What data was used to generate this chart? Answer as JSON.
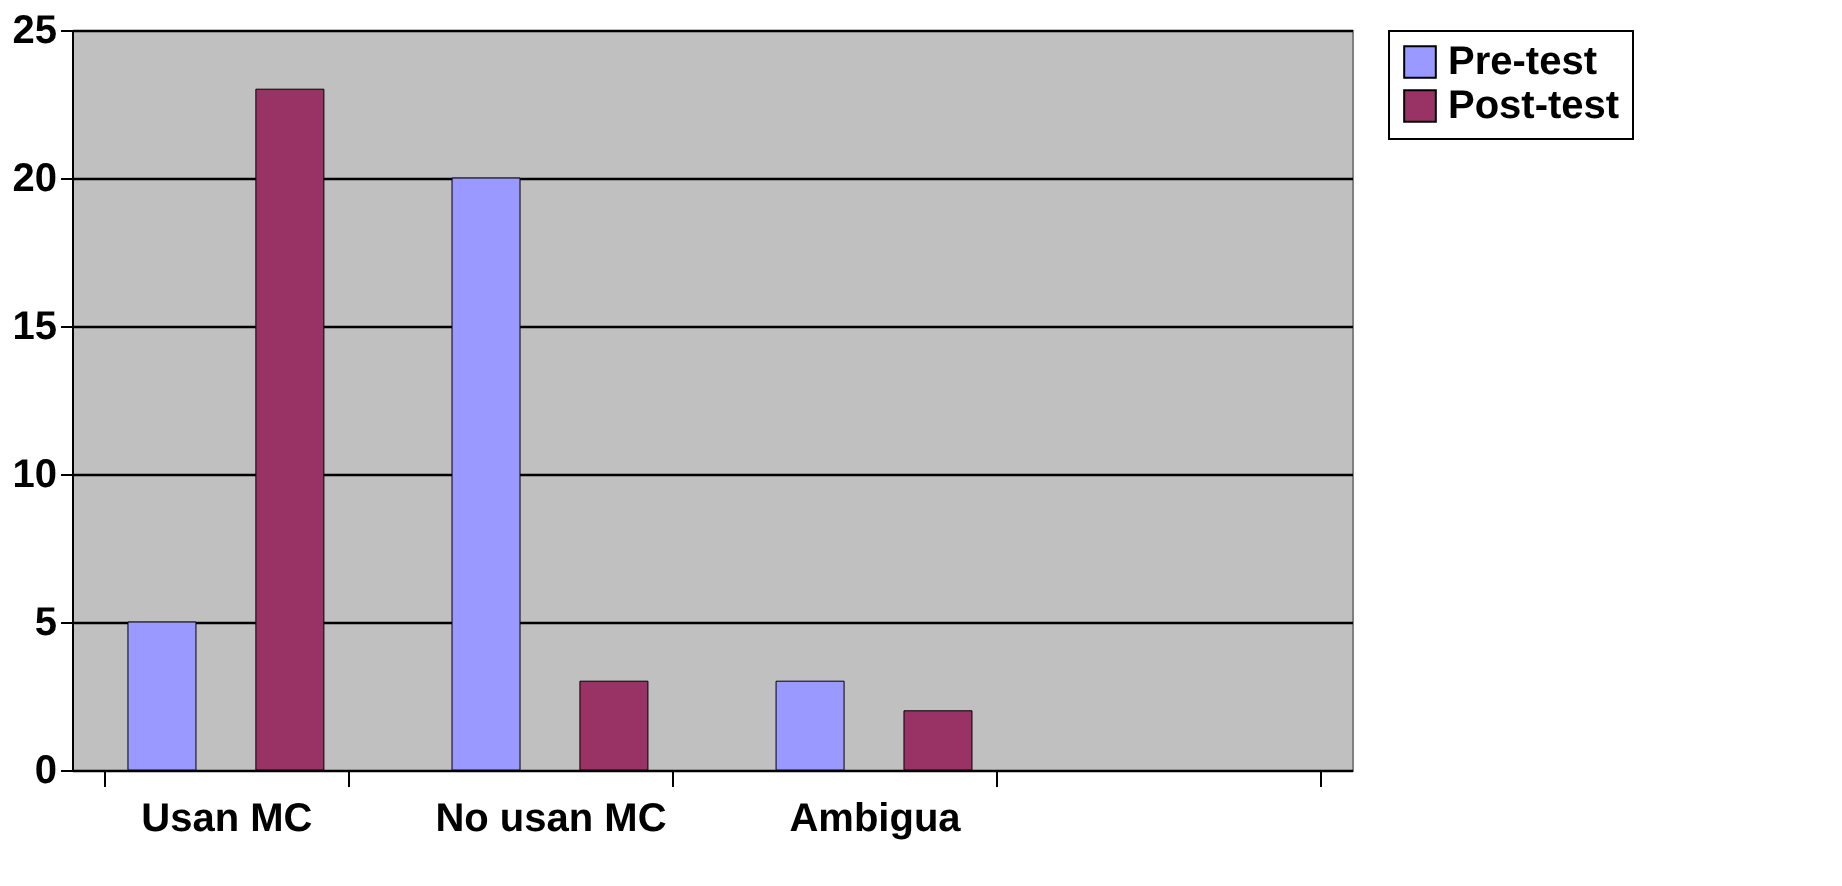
{
  "chart_data": {
    "type": "bar",
    "categories": [
      "Usan MC",
      "No usan MC",
      "Ambigua",
      null
    ],
    "series": [
      {
        "name": "Pre-test",
        "color": "#9999ff",
        "values": [
          5,
          20,
          3,
          null
        ]
      },
      {
        "name": "Post-test",
        "color": "#993366",
        "values": [
          23,
          3,
          2,
          null
        ]
      }
    ],
    "ylim": [
      0,
      25
    ],
    "yticks": [
      0,
      5,
      10,
      15,
      20,
      25
    ],
    "grid": "y",
    "legend": "right"
  }
}
